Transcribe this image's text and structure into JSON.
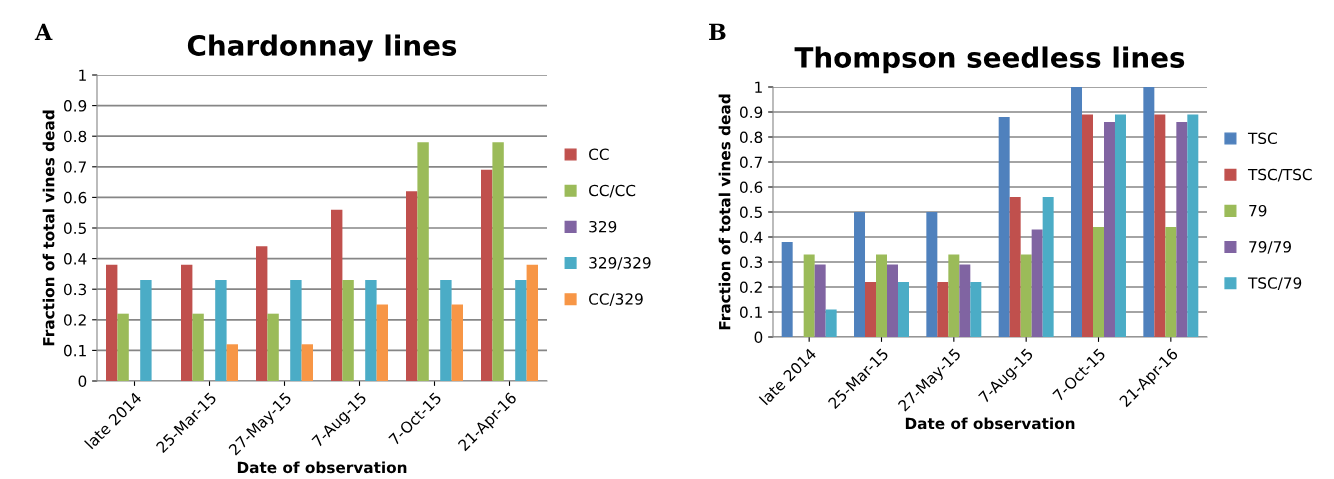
{
  "chart_data": [
    {
      "type": "bar",
      "title": "Chardonnay lines",
      "xlabel": "Date of observation",
      "ylabel": "Fraction of total vines dead",
      "annotations": [
        "A"
      ],
      "categories": [
        "late 2014",
        "25-Mar-15",
        "27-May-15",
        "7-Aug-15",
        "7-Oct-15",
        "21-Apr-16"
      ],
      "series": [
        {
          "name": "CC",
          "color": "#c0504d",
          "values": [
            0.38,
            0.38,
            0.44,
            0.56,
            0.62,
            0.69
          ]
        },
        {
          "name": "CC/CC",
          "color": "#9bbb59",
          "values": [
            0.22,
            0.22,
            0.22,
            0.33,
            0.78,
            0.78
          ]
        },
        {
          "name": "329",
          "color": "#8064a2",
          "values": [
            0,
            0,
            0,
            0,
            0,
            0
          ]
        },
        {
          "name": "329/329",
          "color": "#4bacc6",
          "values": [
            0.33,
            0.33,
            0.33,
            0.33,
            0.33,
            0.33
          ]
        },
        {
          "name": "CC/329",
          "color": "#f79646",
          "values": [
            0,
            0.12,
            0.12,
            0.25,
            0.25,
            0.38
          ]
        }
      ],
      "ylim": [
        0,
        1
      ],
      "yticks": [
        0,
        0.1,
        0.2,
        0.3,
        0.4,
        0.5,
        0.6,
        0.7,
        0.8,
        0.9,
        1
      ],
      "grid": "y",
      "legend": "right"
    },
    {
      "type": "bar",
      "title": "Thompson seedless lines",
      "xlabel": "Date of observation",
      "ylabel": "Fraction of total vines dead",
      "annotations": [
        "B"
      ],
      "categories": [
        "late 2014",
        "25-Mar-15",
        "27-May-15",
        "7-Aug-15",
        "7-Oct-15",
        "21-Apr-16"
      ],
      "series": [
        {
          "name": "TSC",
          "color": "#4f81bd",
          "values": [
            0.38,
            0.5,
            0.5,
            0.88,
            1,
            1
          ]
        },
        {
          "name": "TSC/TSC",
          "color": "#c0504d",
          "values": [
            0,
            0.22,
            0.22,
            0.56,
            0.89,
            0.89
          ]
        },
        {
          "name": "79",
          "color": "#9bbb59",
          "values": [
            0.33,
            0.33,
            0.33,
            0.33,
            0.44,
            0.44
          ]
        },
        {
          "name": "79/79",
          "color": "#8064a2",
          "values": [
            0.29,
            0.29,
            0.29,
            0.43,
            0.86,
            0.86
          ]
        },
        {
          "name": "TSC/79",
          "color": "#4bacc6",
          "values": [
            0.11,
            0.22,
            0.22,
            0.56,
            0.89,
            0.89
          ]
        }
      ],
      "ylim": [
        0,
        1
      ],
      "yticks": [
        0,
        0.1,
        0.2,
        0.3,
        0.4,
        0.5,
        0.6,
        0.7,
        0.8,
        0.9,
        1
      ],
      "grid": "y",
      "legend": "right"
    }
  ]
}
